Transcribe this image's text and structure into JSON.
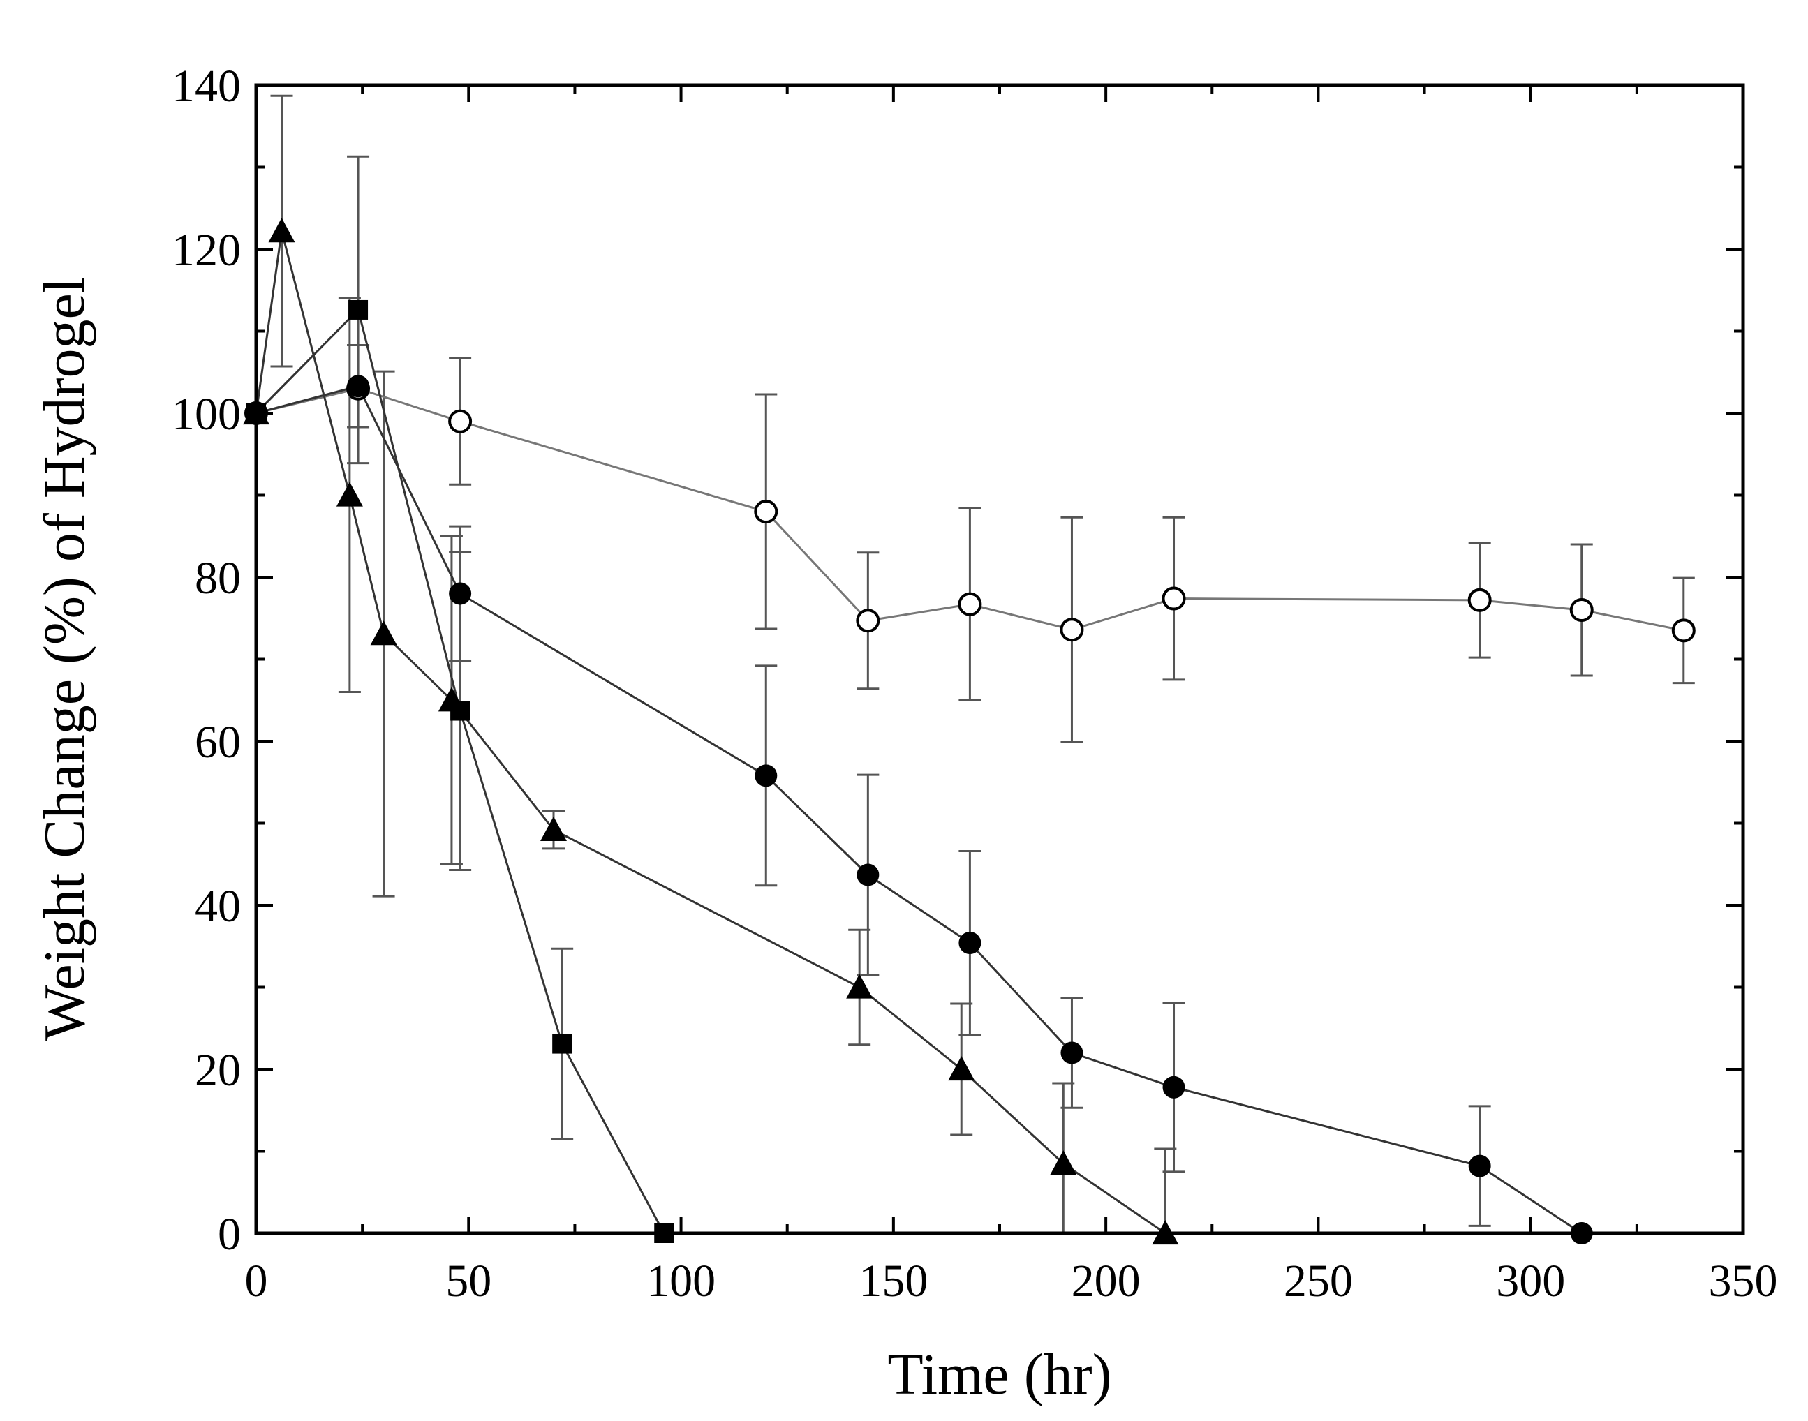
{
  "chart_data": {
    "type": "line",
    "title": "",
    "xlabel": "Time (hr)",
    "ylabel": "Weight Change (%) of Hydrogel",
    "xlim": [
      0,
      350
    ],
    "ylim": [
      0,
      140
    ],
    "xticks": [
      0,
      50,
      100,
      150,
      200,
      250,
      300,
      350
    ],
    "yticks": [
      0,
      20,
      40,
      60,
      80,
      100,
      120,
      140
    ],
    "xtick_labels": [
      "0",
      "50",
      "100",
      "150",
      "200",
      "250",
      "300",
      "350"
    ],
    "ytick_labels": [
      "0",
      "20",
      "40",
      "60",
      "80",
      "100",
      "120",
      "140"
    ],
    "grid": false,
    "legend": "none",
    "series": [
      {
        "name": "open-circle",
        "marker": "circle-open",
        "color": "#000000",
        "line_color": "#777777",
        "x": [
          0,
          24,
          48,
          120,
          144,
          168,
          192,
          216,
          288,
          312,
          336
        ],
        "y": [
          100,
          103,
          99,
          88,
          74.7,
          76.7,
          73.6,
          77.4,
          77.2,
          76,
          73.5
        ],
        "err": [
          0,
          0,
          7.7,
          14.3,
          8.3,
          11.7,
          13.7,
          9.9,
          7,
          8,
          6.4
        ]
      },
      {
        "name": "filled-circle",
        "marker": "circle-filled",
        "color": "#000000",
        "line_color": "#333333",
        "x": [
          0,
          24,
          48,
          120,
          144,
          168,
          192,
          216,
          288,
          312
        ],
        "y": [
          100,
          103.3,
          78,
          55.8,
          43.7,
          35.4,
          22,
          17.8,
          8.2,
          0
        ],
        "err": [
          0,
          5,
          8.2,
          13.4,
          12.2,
          11.2,
          6.7,
          10.3,
          7.3,
          0
        ]
      },
      {
        "name": "filled-triangle",
        "marker": "triangle-filled",
        "color": "#000000",
        "line_color": "#333333",
        "x": [
          0,
          6,
          22,
          30,
          46,
          70,
          142,
          166,
          190,
          214
        ],
        "y": [
          100,
          122.2,
          90,
          73.1,
          65,
          49.2,
          30,
          20,
          8.5,
          0
        ],
        "err": [
          0,
          16.5,
          24,
          32,
          20,
          2.3,
          7,
          8,
          9.8,
          10.3
        ]
      },
      {
        "name": "filled-square",
        "marker": "square-filled",
        "color": "#000000",
        "line_color": "#333333",
        "x": [
          0,
          24,
          48,
          72,
          96
        ],
        "y": [
          100,
          112.6,
          63.7,
          23.1,
          0
        ],
        "err": [
          0,
          18.7,
          19.4,
          11.6,
          0
        ]
      }
    ]
  }
}
